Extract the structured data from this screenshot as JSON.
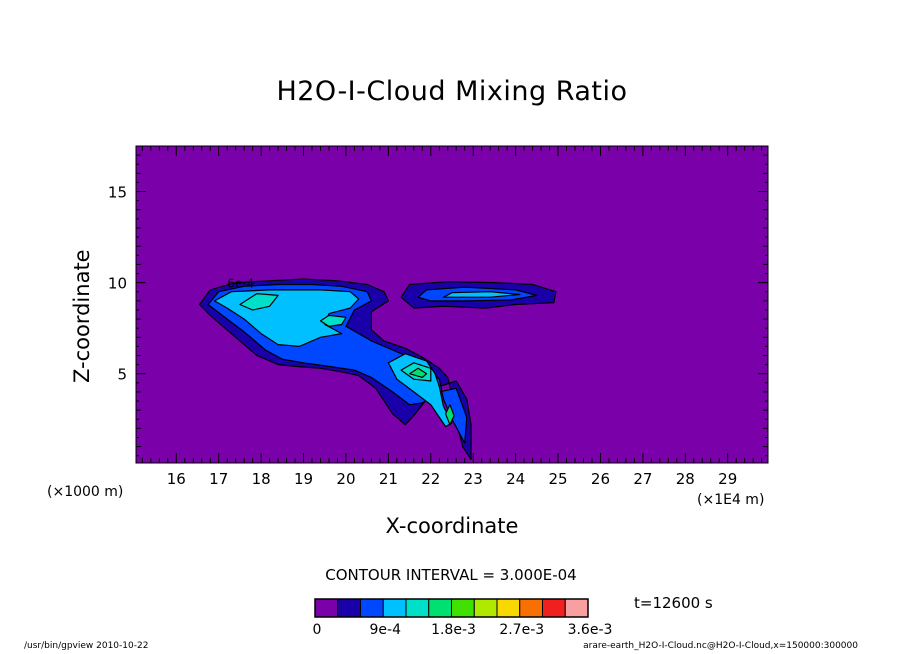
{
  "chart_data": {
    "type": "contour",
    "title": "H2O-I-Cloud Mixing Ratio",
    "xlabel": "X-coordinate",
    "ylabel": "Z-coordinate",
    "x_scale_label": "(×1E4 m)",
    "y_scale_label": "(×1000 m)",
    "xlim": [
      15.05,
      29.95
    ],
    "ylim": [
      0.1,
      17.5
    ],
    "x_ticks": [
      16,
      17,
      18,
      19,
      20,
      21,
      22,
      23,
      24,
      25,
      26,
      27,
      28,
      29
    ],
    "y_ticks": [
      5,
      10,
      15
    ],
    "contour_interval_text": "CONTOUR INTERVAL = 3.000E-04",
    "contour_label": "6e-4",
    "time_label": "t=12600 s",
    "colorbar": {
      "colors": [
        "#7a00aa",
        "#1a00a8",
        "#0048ff",
        "#00c0ff",
        "#00e0c8",
        "#00e070",
        "#40e000",
        "#b0e800",
        "#f8d800",
        "#f87000",
        "#f02020",
        "#f8a0a0"
      ],
      "labels": [
        "0",
        "9e-4",
        "1.8e-3",
        "2.7e-3",
        "3.6e-3"
      ],
      "label_indices": [
        0,
        3,
        6,
        9,
        12
      ]
    },
    "footer_left": "/usr/bin/gpview  2010-10-22",
    "footer_right": "arare-earth_H2O-I-Cloud.nc@H2O-I-Cloud,x=150000:300000"
  }
}
